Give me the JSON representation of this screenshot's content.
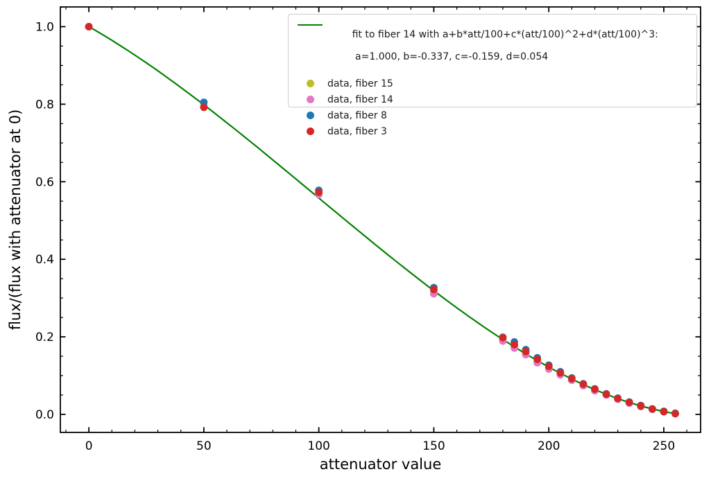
{
  "figure": {
    "background": "#ffffff"
  },
  "chart_data": {
    "type": "scatter",
    "title": "",
    "xlabel": "attenuator value",
    "ylabel": "flux/(flux with attenuator at 0)",
    "xlim": [
      -12.4,
      266.0
    ],
    "ylim": [
      -0.0465,
      1.0509
    ],
    "grid": false,
    "legend_position": "upper right",
    "x_major_ticks": [
      0,
      50,
      100,
      150,
      200,
      250
    ],
    "x_tick_labels": [
      "0",
      "50",
      "100",
      "150",
      "200",
      "250"
    ],
    "x_minor_step": 10,
    "y_major_ticks": [
      0.0,
      0.2,
      0.4,
      0.6,
      0.8,
      1.0
    ],
    "y_tick_labels": [
      "0.0",
      "0.2",
      "0.4",
      "0.6",
      "0.8",
      "1.0"
    ],
    "y_minor_step": 0.05,
    "fit": {
      "label_line1": "fit to fiber 14 with a+b*att/100+c*(att/100)^2+d*(att/100)^3:",
      "label_line2": " a=1.000, b=-0.337, c=-0.159, d=0.054",
      "color": "#008000",
      "coefficients": {
        "a": 1.0,
        "b": -0.337,
        "c": -0.159,
        "d": 0.054
      },
      "x_range": [
        0,
        255
      ]
    },
    "x": [
      0,
      50,
      100,
      150,
      180,
      185,
      190,
      195,
      200,
      205,
      210,
      215,
      220,
      225,
      230,
      235,
      240,
      245,
      250,
      255
    ],
    "series": [
      {
        "label": "data, fiber 15",
        "color": "#bcbd22",
        "values": [
          1.0,
          0.795,
          0.57,
          0.318,
          0.194,
          0.176,
          0.158,
          0.138,
          0.121,
          0.105,
          0.09,
          0.076,
          0.063,
          0.051,
          0.04,
          0.03,
          0.021,
          0.013,
          0.007,
          0.002
        ]
      },
      {
        "label": "data, fiber 14",
        "color": "#e377c2",
        "values": [
          1.0,
          0.794,
          0.567,
          0.311,
          0.189,
          0.171,
          0.154,
          0.133,
          0.117,
          0.102,
          0.088,
          0.074,
          0.061,
          0.05,
          0.039,
          0.029,
          0.02,
          0.013,
          0.007,
          0.002
        ]
      },
      {
        "label": "data, fiber 8",
        "color": "#1f77b4",
        "values": [
          1.0,
          0.805,
          0.578,
          0.327,
          0.199,
          0.187,
          0.167,
          0.146,
          0.127,
          0.11,
          0.094,
          0.079,
          0.066,
          0.053,
          0.042,
          0.032,
          0.023,
          0.014,
          0.008,
          0.003
        ]
      },
      {
        "label": "data, fiber 3",
        "color": "#d62728",
        "values": [
          1.0,
          0.792,
          0.573,
          0.322,
          0.198,
          0.18,
          0.162,
          0.142,
          0.124,
          0.107,
          0.092,
          0.078,
          0.065,
          0.052,
          0.041,
          0.031,
          0.022,
          0.014,
          0.007,
          0.002
        ]
      }
    ]
  }
}
